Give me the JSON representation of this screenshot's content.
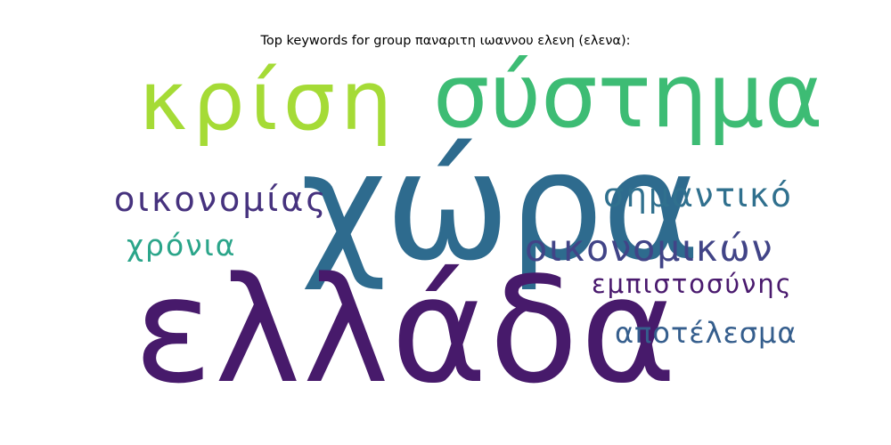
{
  "title": "Top keywords for group παναριτη ιωαννου ελενη (ελενα):",
  "words": [
    {
      "text": "κρίση",
      "color": "#a5db36"
    },
    {
      "text": "σύστημα",
      "color": "#3dbc74"
    },
    {
      "text": "χώρα",
      "color": "#2e6b8e"
    },
    {
      "text": "οικονομίας",
      "color": "#46327e"
    },
    {
      "text": "σημαντικό",
      "color": "#30708e"
    },
    {
      "text": "χρόνια",
      "color": "#2ba58a"
    },
    {
      "text": "οικονομικών",
      "color": "#414487"
    },
    {
      "text": "εμπιστοσύνης",
      "color": "#4a1a6e"
    },
    {
      "text": "ελλάδα",
      "color": "#471a6b"
    },
    {
      "text": "αποτέλεσμα",
      "color": "#355e8d"
    }
  ]
}
